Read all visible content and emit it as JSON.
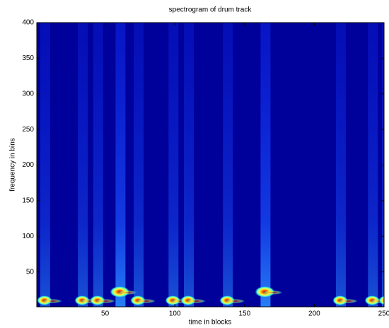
{
  "chart_data": {
    "type": "heatmap",
    "title": "spectrogram of drum track",
    "xlabel": "time in blocks",
    "ylabel": "frequency in bins",
    "colormap": "jet",
    "x": [
      5,
      32,
      43,
      59,
      72,
      97,
      108,
      136,
      163,
      217,
      240,
      250
    ],
    "values": [
      10,
      10,
      10,
      22,
      10,
      10,
      10,
      10,
      22,
      10,
      10,
      10
    ],
    "xlim": [
      1,
      250
    ],
    "ylim": [
      1,
      400
    ],
    "xticks": [
      50,
      100,
      150,
      200,
      250
    ],
    "yticks": [
      50,
      100,
      150,
      200,
      250,
      300,
      350,
      400
    ]
  }
}
